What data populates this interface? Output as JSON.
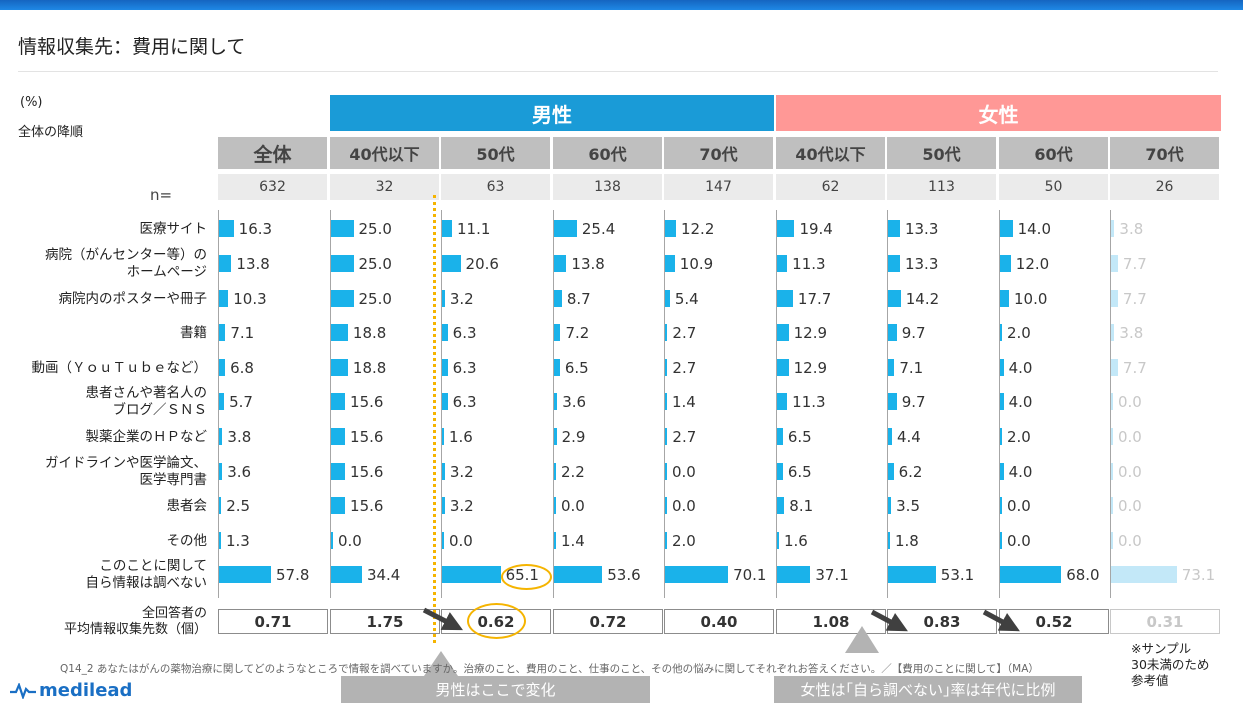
{
  "title": "情報収集先：費用に関して",
  "unit": "(%)",
  "sort_note": "全体の降順",
  "groups": {
    "male": "男性",
    "female": "女性"
  },
  "n_label": "n=",
  "columns": [
    {
      "label": "全体",
      "n": "632",
      "avg": "0.71"
    },
    {
      "label": "40代以下",
      "n": "32",
      "avg": "1.75"
    },
    {
      "label": "50代",
      "n": "63",
      "avg": "0.62"
    },
    {
      "label": "60代",
      "n": "138",
      "avg": "0.72"
    },
    {
      "label": "70代",
      "n": "147",
      "avg": "0.40"
    },
    {
      "label": "40代以下",
      "n": "62",
      "avg": "1.08"
    },
    {
      "label": "50代",
      "n": "113",
      "avg": "0.83"
    },
    {
      "label": "60代",
      "n": "50",
      "avg": "0.52"
    },
    {
      "label": "70代",
      "n": "26",
      "avg": "0.31"
    }
  ],
  "chart_data": {
    "type": "bar",
    "orientation": "horizontal",
    "unit": "(%)",
    "categories": [
      "医療サイト",
      "病院（がんセンター等）の\nホームページ",
      "病院内のポスターや冊子",
      "書籍",
      "動画（ＹｏｕＴｕｂｅなど）",
      "患者さんや著名人の\nブログ／ＳＮＳ",
      "製薬企業のＨＰなど",
      "ガイドラインや医学論文、\n医学専門書",
      "患者会",
      "その他",
      "このことに関して\n自ら情報は調べない"
    ],
    "series": [
      {
        "name": "全体",
        "values": [
          16.3,
          13.8,
          10.3,
          7.1,
          6.8,
          5.7,
          3.8,
          3.6,
          2.5,
          1.3,
          57.8
        ]
      },
      {
        "name": "男性 40代以下",
        "values": [
          25.0,
          25.0,
          25.0,
          18.8,
          18.8,
          15.6,
          15.6,
          15.6,
          15.6,
          0.0,
          34.4
        ]
      },
      {
        "name": "男性 50代",
        "values": [
          11.1,
          20.6,
          3.2,
          6.3,
          6.3,
          6.3,
          1.6,
          3.2,
          3.2,
          0.0,
          65.1
        ]
      },
      {
        "name": "男性 60代",
        "values": [
          25.4,
          13.8,
          8.7,
          7.2,
          6.5,
          3.6,
          2.9,
          2.2,
          0.0,
          1.4,
          53.6
        ]
      },
      {
        "name": "男性 70代",
        "values": [
          12.2,
          10.9,
          5.4,
          2.7,
          2.7,
          1.4,
          2.7,
          0.0,
          0.0,
          2.0,
          70.1
        ]
      },
      {
        "name": "女性 40代以下",
        "values": [
          19.4,
          11.3,
          17.7,
          12.9,
          12.9,
          11.3,
          6.5,
          6.5,
          8.1,
          1.6,
          37.1
        ]
      },
      {
        "name": "女性 50代",
        "values": [
          13.3,
          13.3,
          14.2,
          9.7,
          7.1,
          9.7,
          4.4,
          6.2,
          3.5,
          1.8,
          53.1
        ]
      },
      {
        "name": "女性 60代",
        "values": [
          14.0,
          12.0,
          10.0,
          2.0,
          4.0,
          4.0,
          2.0,
          4.0,
          0.0,
          0.0,
          68.0
        ]
      },
      {
        "name": "女性 70代",
        "values": [
          3.8,
          7.7,
          7.7,
          3.8,
          7.7,
          0.0,
          0.0,
          0.0,
          0.0,
          0.0,
          73.1
        ]
      }
    ],
    "reference_series": [
      8
    ],
    "highlighted_values": [
      {
        "series": 2,
        "row": 10
      }
    ],
    "value_labels": true
  },
  "avg_label": "全回答者の\n平均情報収集先数（個）",
  "footnote": "Q14_2  あなたはがんの薬物治療に関してどのようなところで情報を調べていますか。治療のこと、費用のこと、仕事のこと、その他の悩みに関してそれぞれお答えください。／【費用のことに関して】（MA）",
  "sample_note": "※サンプル\n30未満のため\n参考値",
  "callouts": {
    "male": "男性はここで変化",
    "female": "女性は｢自ら調べない｣率は年代に比例"
  },
  "logo": "medilead",
  "colors": {
    "male": "#1a9bd7",
    "female": "#ff9896",
    "bar": "#1ab2ea",
    "bar_reference": "#c3e8f8",
    "highlight": "#f5b400",
    "callout": "#b3b3b3"
  }
}
